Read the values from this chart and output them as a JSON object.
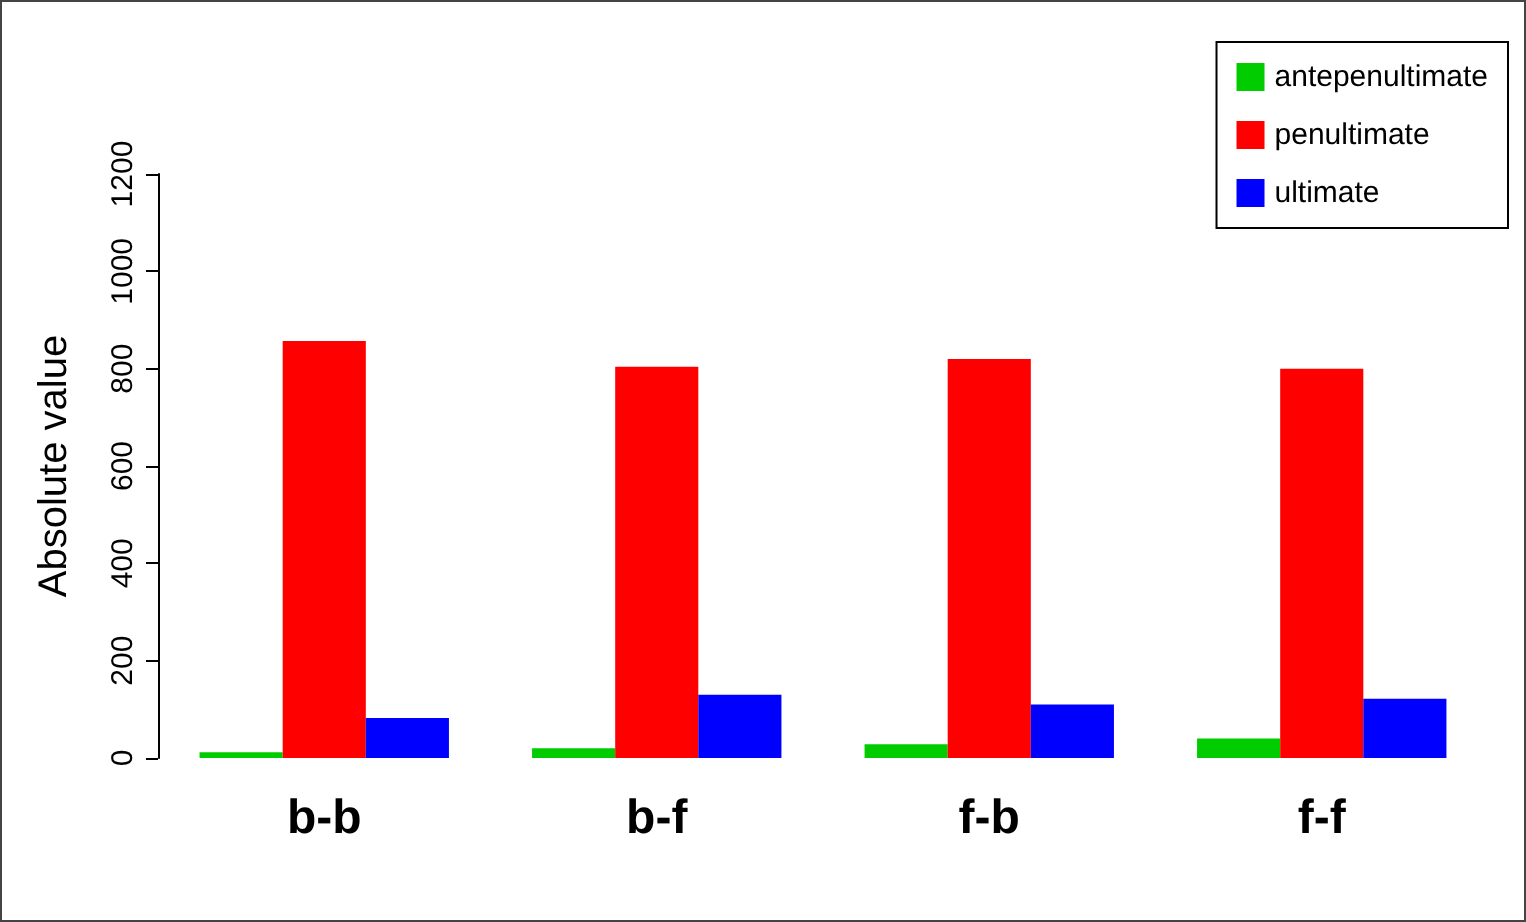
{
  "chart_data": {
    "type": "bar",
    "ylabel": "Absolute value",
    "categories": [
      "b-b",
      "b-f",
      "f-b",
      "f-f"
    ],
    "series": [
      {
        "name": "antepenultimate",
        "color": "#00cc00",
        "values": [
          12,
          20,
          28,
          40
        ]
      },
      {
        "name": "penultimate",
        "color": "#ff0000",
        "values": [
          857,
          804,
          820,
          800
        ]
      },
      {
        "name": "ultimate",
        "color": "#0000ff",
        "values": [
          82,
          130,
          110,
          122
        ]
      }
    ],
    "ylim": [
      0,
      1200
    ],
    "yticks": [
      0,
      200,
      400,
      600,
      800,
      1000,
      1200
    ],
    "grid": false,
    "legend": "top right"
  }
}
